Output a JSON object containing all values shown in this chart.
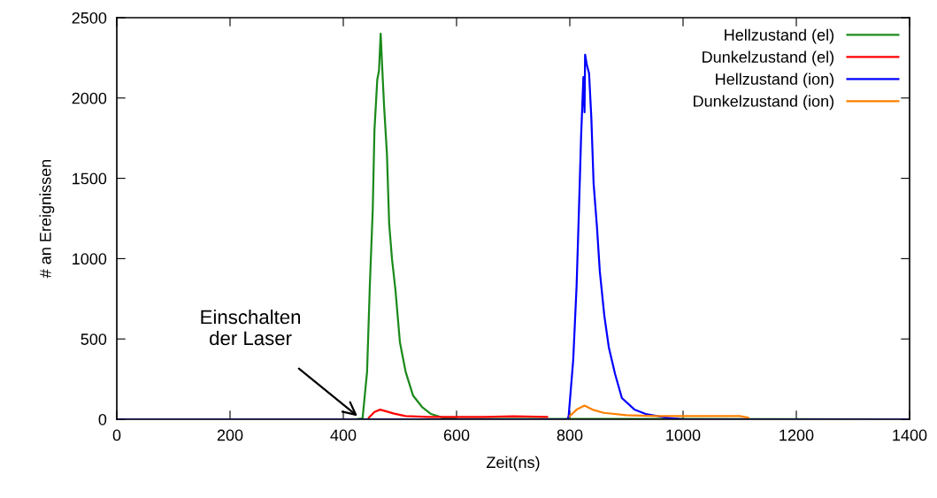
{
  "chart_data": {
    "type": "line",
    "xlabel": "Zeit(ns)",
    "ylabel": "# an Ereignissen",
    "xlim": [
      0,
      1400
    ],
    "ylim": [
      0,
      2500
    ],
    "xticks": [
      0,
      200,
      400,
      600,
      800,
      1000,
      1200,
      1400
    ],
    "yticks": [
      0,
      500,
      1000,
      1500,
      2000,
      2500
    ],
    "grid": false,
    "legend": "top right",
    "marker": "none",
    "line_style": "solid",
    "annotations": [
      {
        "text": "Einschalten\nder Laser",
        "x": 425,
        "y": 20
      }
    ],
    "series": [
      {
        "name": "Hellzustand (el)",
        "color": "#1a8a1a",
        "x": [
          0,
          420,
          434,
          442,
          447,
          452,
          455,
          460,
          463,
          466,
          469,
          472,
          477,
          481,
          486,
          492,
          500,
          510,
          523,
          539,
          555,
          575,
          600,
          1400
        ],
        "values": [
          0,
          0,
          5,
          297,
          848,
          1305,
          1800,
          2115,
          2170,
          2400,
          2170,
          1950,
          1657,
          1217,
          997,
          809,
          479,
          297,
          149,
          77,
          33,
          11,
          3,
          0
        ]
      },
      {
        "name": "Dunkelzustand (el)",
        "color": "#ff0000",
        "x": [
          445,
          455,
          465,
          475,
          490,
          510,
          550,
          600,
          650,
          700,
          760
        ],
        "values": [
          10,
          45,
          60,
          50,
          35,
          20,
          15,
          15,
          15,
          18,
          15
        ]
      },
      {
        "name": "Hellzustand (ion)",
        "color": "#0000ff",
        "x": [
          0,
          796,
          798,
          806,
          812,
          816,
          820,
          824,
          826,
          827,
          830,
          834,
          838,
          842,
          848,
          853,
          861,
          869,
          880,
          892,
          914,
          934,
          970,
          1000,
          1400
        ],
        "values": [
          0,
          0,
          22,
          369,
          831,
          1288,
          1767,
          2131,
          1911,
          2270,
          2208,
          2153,
          1878,
          1470,
          1195,
          920,
          644,
          446,
          281,
          132,
          61,
          33,
          10,
          0,
          0
        ]
      },
      {
        "name": "Dunkelzustand (ion)",
        "color": "#ff8000",
        "x": [
          800,
          812,
          826,
          840,
          860,
          900,
          950,
          1000,
          1050,
          1100,
          1115
        ],
        "values": [
          20,
          60,
          85,
          60,
          40,
          25,
          20,
          20,
          20,
          20,
          10
        ]
      }
    ]
  }
}
